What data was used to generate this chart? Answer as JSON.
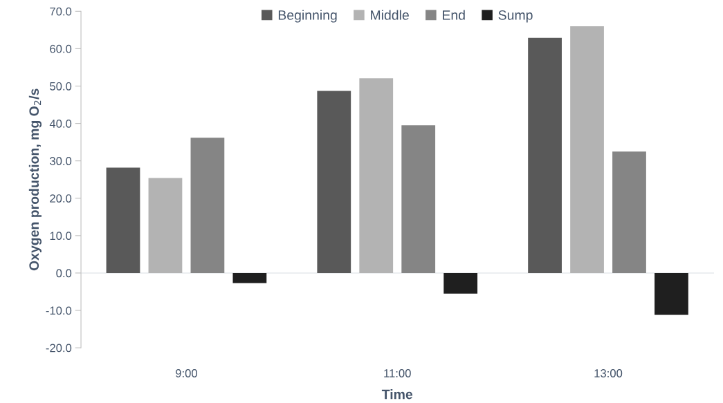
{
  "chart_data": {
    "type": "bar",
    "xlabel": "Time",
    "ylabel": "Oxygen production, mg O$_{2}$/s",
    "categories": [
      "9:00",
      "11:00",
      "13:00"
    ],
    "series": [
      {
        "name": "Beginning",
        "color": "#595959",
        "values": [
          28.2,
          48.7,
          62.9
        ]
      },
      {
        "name": "Middle",
        "color": "#b3b3b3",
        "values": [
          25.4,
          52.1,
          66.0
        ]
      },
      {
        "name": "End",
        "color": "#858585",
        "values": [
          36.2,
          39.5,
          32.5
        ]
      },
      {
        "name": "Sump",
        "color": "#1f1f1f",
        "values": [
          -2.7,
          -5.5,
          -11.2
        ]
      }
    ],
    "ylim": [
      -20,
      70
    ],
    "yticks": [
      {
        "value": -20,
        "label": "-20.0"
      },
      {
        "value": -10,
        "label": "-10.0"
      },
      {
        "value": 0,
        "label": "0.0"
      },
      {
        "value": 10,
        "label": "10.0"
      },
      {
        "value": 20,
        "label": "20.0"
      },
      {
        "value": 30,
        "label": "30.0"
      },
      {
        "value": 40,
        "label": "40.0"
      },
      {
        "value": 50,
        "label": "50.0"
      },
      {
        "value": 60,
        "label": "60.0"
      },
      {
        "value": 70,
        "label": "70.0"
      }
    ],
    "legend": "top"
  }
}
